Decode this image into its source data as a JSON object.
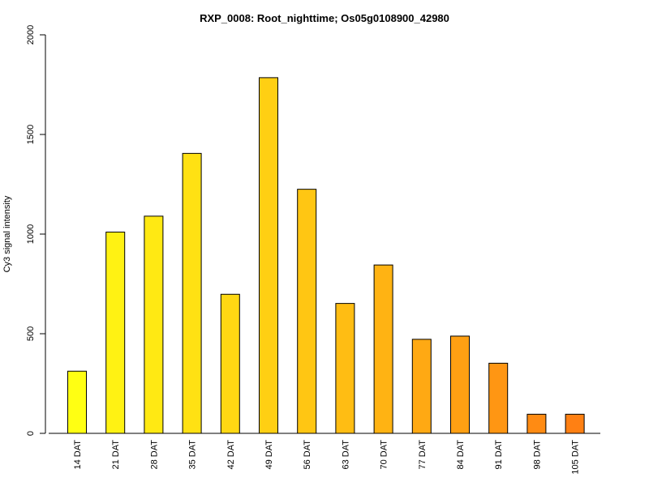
{
  "chart_data": {
    "type": "bar",
    "title": "RXP_0008: Root_nighttime; Os05g0108900_42980",
    "xlabel": "",
    "ylabel": "Cy3 signal intensity",
    "ylim": [
      0,
      2000
    ],
    "yticks": [
      0,
      500,
      1000,
      1500,
      2000
    ],
    "categories": [
      "14 DAT",
      "21 DAT",
      "28 DAT",
      "35 DAT",
      "42 DAT",
      "49 DAT",
      "56 DAT",
      "63 DAT",
      "70 DAT",
      "77 DAT",
      "84 DAT",
      "91 DAT",
      "98 DAT",
      "105 DAT"
    ],
    "values": [
      312,
      1010,
      1090,
      1405,
      698,
      1785,
      1225,
      652,
      845,
      472,
      488,
      352,
      96,
      96
    ],
    "colors": [
      "#ffff13",
      "#fff213",
      "#ffe913",
      "#ffe113",
      "#ffd813",
      "#ffcf13",
      "#ffc613",
      "#ffbd13",
      "#ffb313",
      "#ffa913",
      "#ffa013",
      "#ff9613",
      "#ff8b13",
      "#ff8013"
    ],
    "grid": false,
    "legend": "none"
  }
}
